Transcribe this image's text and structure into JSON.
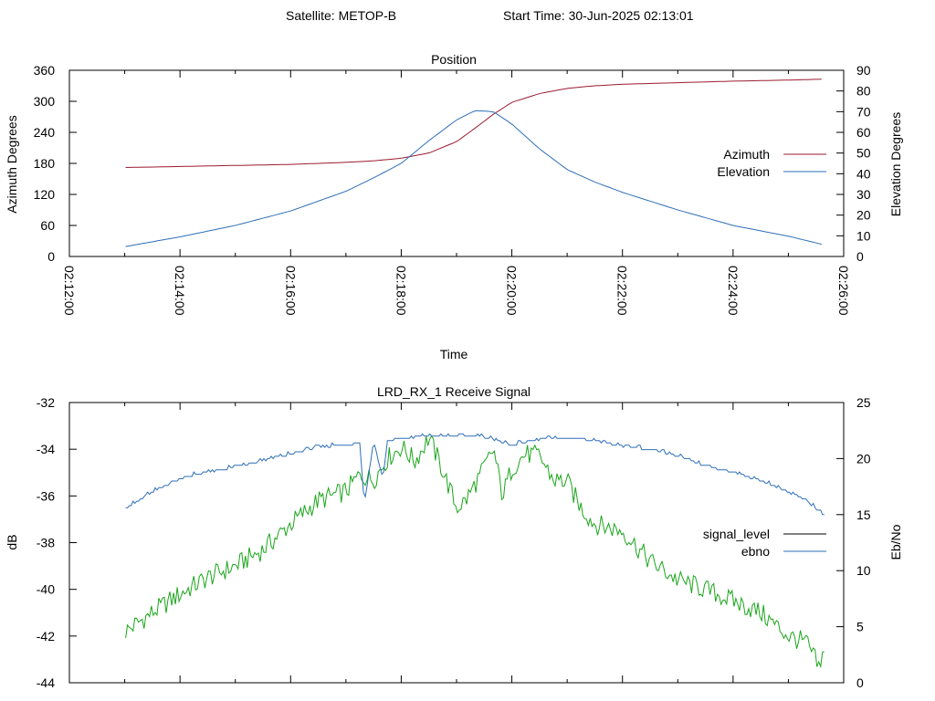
{
  "header": {
    "satellite": "Satellite: METOP-B",
    "start_time": "Start Time: 30-Jun-2025 02:13:01"
  },
  "chart_data": [
    {
      "type": "line",
      "title": "Position",
      "xlabel": "Time",
      "ylabel": "Azimuth Degrees",
      "y2label": "Elevation Degrees",
      "xlim": [
        "02:12:00",
        "02:26:00"
      ],
      "ylim": [
        0,
        360
      ],
      "y2lim": [
        0,
        90
      ],
      "x_ticks": [
        "02:12:00",
        "02:14:00",
        "02:16:00",
        "02:18:00",
        "02:20:00",
        "02:22:00",
        "02:24:00",
        "02:26:00"
      ],
      "y_ticks": [
        "0",
        "60",
        "120",
        "180",
        "240",
        "300",
        "360"
      ],
      "y2_ticks": [
        "0",
        "10",
        "20",
        "30",
        "40",
        "50",
        "60",
        "70",
        "80",
        "90"
      ],
      "grid": false,
      "legend_position": "right",
      "series": [
        {
          "name": "Azimuth",
          "axis": "y",
          "color": "#9b1b30",
          "x": [
            "02:13:01",
            "02:14:00",
            "02:15:00",
            "02:16:00",
            "02:17:00",
            "02:17:30",
            "02:18:00",
            "02:18:30",
            "02:19:00",
            "02:19:20",
            "02:19:40",
            "02:20:00",
            "02:20:30",
            "02:21:00",
            "02:21:30",
            "02:22:00",
            "02:23:00",
            "02:24:00",
            "02:25:00",
            "02:25:40"
          ],
          "values": [
            172,
            174,
            176,
            178,
            182,
            185,
            190,
            200,
            222,
            248,
            275,
            298,
            315,
            325,
            330,
            333,
            336,
            339,
            341,
            343
          ]
        },
        {
          "name": "Elevation",
          "axis": "y2",
          "color": "#2e6fb8",
          "x": [
            "02:13:01",
            "02:14:00",
            "02:15:00",
            "02:16:00",
            "02:17:00",
            "02:17:30",
            "02:18:00",
            "02:18:30",
            "02:19:00",
            "02:19:20",
            "02:19:40",
            "02:20:00",
            "02:20:30",
            "02:21:00",
            "02:21:30",
            "02:22:00",
            "02:23:00",
            "02:24:00",
            "02:25:00",
            "02:25:40"
          ],
          "values": [
            4.8,
            9.5,
            15,
            22,
            31.5,
            38,
            45,
            56,
            66,
            70.5,
            70,
            64,
            52,
            42,
            36,
            31,
            22.5,
            15,
            9.8,
            5.5
          ]
        }
      ]
    },
    {
      "type": "line",
      "title": "LRD_RX_1 Receive Signal",
      "ylabel": "dB",
      "y2label": "Eb/No",
      "ylim": [
        -44,
        -32
      ],
      "y2lim": [
        0,
        25
      ],
      "y_ticks": [
        "-32",
        "-34",
        "-36",
        "-38",
        "-40",
        "-42",
        "-44"
      ],
      "y2_ticks": [
        "0",
        "5",
        "10",
        "15",
        "20",
        "25"
      ],
      "grid": false,
      "legend_position": "right",
      "series": [
        {
          "name": "signal_level",
          "axis": "y",
          "color": "#1aa61a",
          "legend_color": "#000000",
          "x": [
            "02:13:01",
            "02:13:30",
            "02:14:00",
            "02:14:30",
            "02:15:00",
            "02:15:30",
            "02:16:00",
            "02:16:30",
            "02:17:00",
            "02:17:15",
            "02:17:30",
            "02:17:45",
            "02:18:00",
            "02:18:15",
            "02:18:30",
            "02:18:45",
            "02:19:00",
            "02:19:10",
            "02:19:20",
            "02:19:30",
            "02:19:40",
            "02:19:50",
            "02:20:00",
            "02:20:15",
            "02:20:30",
            "02:20:45",
            "02:21:00",
            "02:21:15",
            "02:21:30",
            "02:22:00",
            "02:22:30",
            "02:23:00",
            "02:23:30",
            "02:24:00",
            "02:24:30",
            "02:25:00",
            "02:25:20",
            "02:25:35",
            "02:25:40"
          ],
          "values": [
            -41.8,
            -41.0,
            -40.2,
            -39.5,
            -39.0,
            -38.3,
            -37.2,
            -36.2,
            -35.8,
            -35.1,
            -35.3,
            -34.4,
            -33.9,
            -34.5,
            -33.5,
            -34.9,
            -36.5,
            -36.2,
            -35.5,
            -34.8,
            -34.0,
            -36.0,
            -34.8,
            -34.2,
            -34.3,
            -35.3,
            -35.4,
            -36.5,
            -37.2,
            -37.5,
            -38.8,
            -39.6,
            -40.0,
            -40.5,
            -41.0,
            -42.0,
            -42.3,
            -43.5,
            -42.0
          ]
        },
        {
          "name": "ebno",
          "axis": "y2",
          "color": "#2e6fb8",
          "x": [
            "02:13:01",
            "02:13:30",
            "02:14:00",
            "02:14:30",
            "02:15:00",
            "02:15:30",
            "02:16:00",
            "02:16:30",
            "02:17:00",
            "02:17:15",
            "02:17:20",
            "02:17:30",
            "02:17:40",
            "02:17:45",
            "02:18:00",
            "02:18:30",
            "02:19:00",
            "02:19:30",
            "02:20:00",
            "02:20:30",
            "02:21:00",
            "02:21:30",
            "02:22:00",
            "02:22:30",
            "02:23:00",
            "02:23:30",
            "02:24:00",
            "02:24:30",
            "02:25:00",
            "02:25:20",
            "02:25:40"
          ],
          "values": [
            15.5,
            17.0,
            18.2,
            18.8,
            19.2,
            19.8,
            20.4,
            21.0,
            21.2,
            21.4,
            16.0,
            21.5,
            18.2,
            21.6,
            21.8,
            22.0,
            22.1,
            21.9,
            21.2,
            21.7,
            21.9,
            21.6,
            21.1,
            20.8,
            20.2,
            19.3,
            18.8,
            18.0,
            17.0,
            16.2,
            14.9
          ]
        }
      ]
    }
  ]
}
